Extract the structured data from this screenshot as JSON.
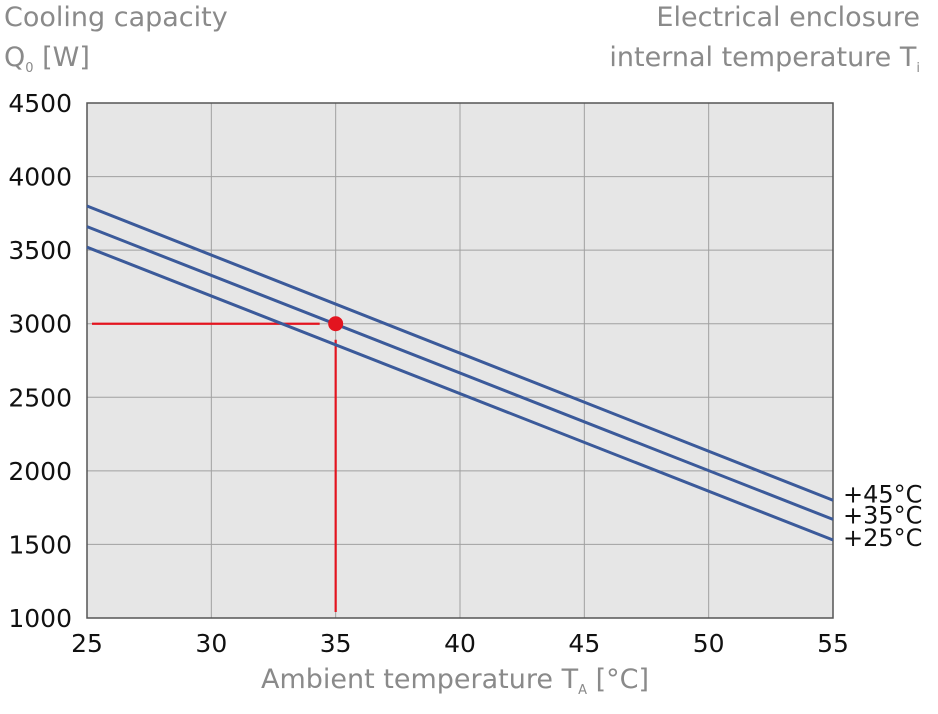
{
  "chart_data": {
    "type": "line",
    "y_title": "Cooling capacity",
    "y_unit_main": "Q",
    "y_unit_sub": "0",
    "y_unit_after": " [W]",
    "right_title_line1": "Electrical enclosure",
    "right_title_line2_main": "internal temperature T",
    "right_title_line2_sub": "i",
    "x_title_main": "Ambient temperature T",
    "x_title_sub": "A",
    "x_title_after": " [°C]",
    "xlim": [
      25,
      55
    ],
    "ylim": [
      1000,
      4500
    ],
    "x_ticks": [
      25,
      30,
      35,
      40,
      45,
      50,
      55
    ],
    "y_ticks": [
      1000,
      1500,
      2000,
      2500,
      3000,
      3500,
      4000,
      4500
    ],
    "grid": true,
    "series": [
      {
        "name": "+45°C",
        "x": [
          25,
          55
        ],
        "y": [
          3800,
          1800
        ]
      },
      {
        "name": "+35°C",
        "x": [
          25,
          55
        ],
        "y": [
          3660,
          1670
        ]
      },
      {
        "name": "+25°C",
        "x": [
          25,
          55
        ],
        "y": [
          3520,
          1530
        ]
      }
    ],
    "marker": {
      "x": 35,
      "y": 3000
    },
    "colors": {
      "series": "#3b5a9a",
      "marker": "#e3141f",
      "plot_bg": "#e6e6e6",
      "grid": "#a0a0a0",
      "axis_text": "#111111",
      "title_text": "#8a8a8a"
    }
  }
}
